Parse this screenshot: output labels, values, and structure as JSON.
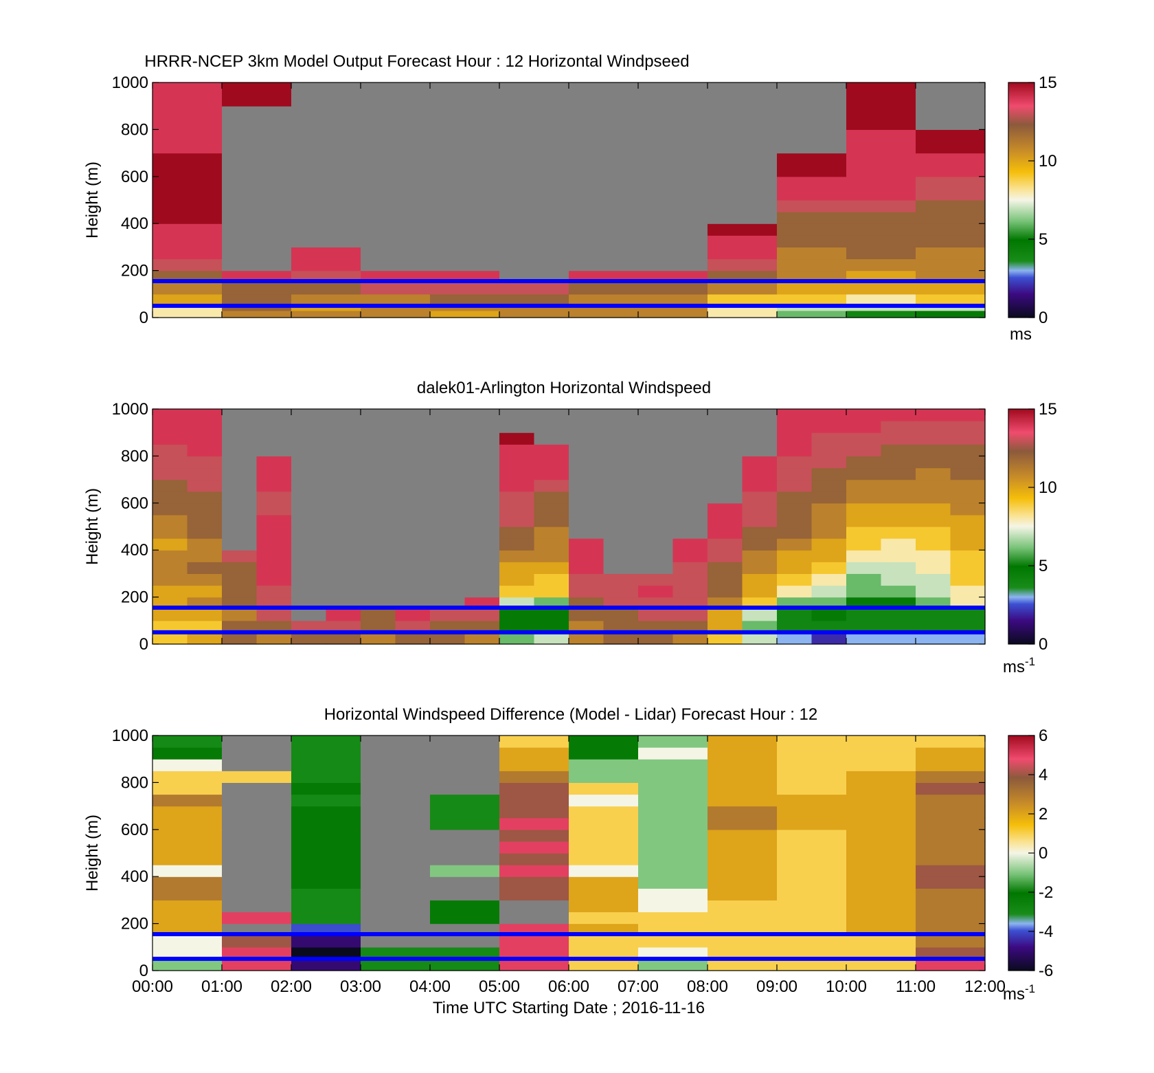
{
  "figure": {
    "xlabel": "Time UTC  Starting Date ; 2016-11-16",
    "x_ticks": [
      "00:00",
      "01:00",
      "02:00",
      "03:00",
      "04:00",
      "05:00",
      "06:00",
      "07:00",
      "08:00",
      "09:00",
      "10:00",
      "11:00",
      "12:00"
    ],
    "y_ticks": [
      "0",
      "200",
      "400",
      "600",
      "800",
      "1000"
    ],
    "ylabel": "Height (m)",
    "missing_color": "#808080",
    "reference_line_color": "#0000ff"
  },
  "chart_data": [
    {
      "type": "heatmap",
      "title": "HRRR-NCEP 3km Model Output   Forecast Hour : 12 Horizontal Windpseed",
      "xlabel": "",
      "ylabel": "Height (m)",
      "xlim": [
        "00:00",
        "12:00"
      ],
      "ylim": [
        0,
        1000
      ],
      "colorbar": {
        "range": [
          0,
          15
        ],
        "ticks": [
          "15",
          "10",
          "5",
          "0"
        ],
        "unit_base": "ms",
        "unit_exp": ""
      },
      "reference_lines_m": [
        155,
        50
      ],
      "time_bins_h": [
        0,
        1,
        2,
        3,
        4,
        5,
        6,
        7,
        8,
        9,
        10,
        11,
        12
      ],
      "height_bins_m": [
        0,
        30,
        60,
        100,
        150,
        200,
        250,
        300,
        350,
        400,
        450,
        500,
        600,
        700,
        800,
        900,
        1000
      ],
      "values": [
        [
          8,
          11,
          11,
          11,
          10,
          11,
          11,
          11,
          8,
          6,
          4,
          5
        ],
        [
          8,
          12,
          10,
          11,
          11,
          11,
          11,
          11,
          8,
          7,
          7,
          7
        ],
        [
          10,
          12,
          11,
          11,
          12,
          12,
          11,
          11,
          9,
          9,
          8,
          9
        ],
        [
          11,
          12,
          12,
          13,
          13,
          13,
          12,
          12,
          11,
          10,
          10,
          10
        ],
        [
          12,
          14,
          13,
          14,
          14,
          null,
          14,
          14,
          12,
          11,
          10,
          11
        ],
        [
          13,
          null,
          14,
          null,
          null,
          null,
          null,
          null,
          13,
          11,
          11,
          11
        ],
        [
          14,
          null,
          14,
          null,
          null,
          null,
          null,
          null,
          14,
          11,
          12,
          11
        ],
        [
          14,
          null,
          null,
          null,
          null,
          null,
          null,
          null,
          14,
          12,
          12,
          12
        ],
        [
          14,
          null,
          null,
          null,
          null,
          null,
          null,
          null,
          15,
          12,
          12,
          12
        ],
        [
          15,
          null,
          null,
          null,
          null,
          null,
          null,
          null,
          null,
          12,
          12,
          12
        ],
        [
          15,
          null,
          null,
          null,
          null,
          null,
          null,
          null,
          null,
          13,
          13,
          12
        ],
        [
          15,
          null,
          null,
          null,
          null,
          null,
          null,
          null,
          null,
          14,
          14,
          13
        ],
        [
          15,
          null,
          null,
          null,
          null,
          null,
          null,
          null,
          null,
          15,
          14,
          14
        ],
        [
          14,
          null,
          null,
          null,
          null,
          null,
          null,
          null,
          null,
          null,
          14,
          15
        ],
        [
          14,
          null,
          null,
          null,
          null,
          null,
          null,
          null,
          null,
          null,
          15,
          null
        ],
        [
          14,
          15,
          null,
          null,
          null,
          null,
          null,
          null,
          null,
          null,
          15,
          null
        ]
      ]
    },
    {
      "type": "heatmap",
      "title": "dalek01-Arlington  Horizontal Windspeed",
      "xlabel": "",
      "ylabel": "Height (m)",
      "xlim": [
        "00:00",
        "12:00"
      ],
      "ylim": [
        0,
        1000
      ],
      "colorbar": {
        "range": [
          0,
          15
        ],
        "ticks": [
          "15",
          "10",
          "5",
          "0"
        ],
        "unit_base": "ms",
        "unit_exp": "-1"
      },
      "reference_lines_m": [
        155,
        50
      ],
      "time_bins_h": [
        0,
        0.5,
        1,
        1.5,
        2,
        2.5,
        3,
        3.5,
        4,
        4.5,
        5,
        5.5,
        6,
        6.5,
        7,
        7.5,
        8,
        8.5,
        9,
        9.5,
        10,
        10.5,
        11,
        11.5,
        12
      ],
      "height_bins_m": [
        0,
        50,
        100,
        150,
        200,
        250,
        300,
        350,
        400,
        450,
        500,
        550,
        600,
        650,
        700,
        750,
        800,
        850,
        900,
        950,
        1000
      ],
      "values": [
        [
          9,
          10,
          12,
          11,
          12,
          12,
          11,
          12,
          12,
          11,
          6,
          7,
          11,
          12,
          12,
          11,
          9,
          7,
          3,
          2,
          3,
          3,
          3,
          3
        ],
        [
          9,
          9,
          12,
          12,
          13,
          13,
          12,
          13,
          12,
          12,
          5,
          5,
          11,
          12,
          12,
          12,
          10,
          6,
          4,
          4,
          4,
          4,
          4,
          4
        ],
        [
          10,
          10,
          11,
          13,
          null,
          14,
          12,
          14,
          13,
          13,
          5,
          5,
          12,
          12,
          13,
          13,
          10,
          7,
          4,
          5,
          4,
          4,
          4,
          4
        ],
        [
          10,
          11,
          12,
          13,
          null,
          null,
          null,
          null,
          null,
          14,
          7,
          6,
          12,
          13,
          13,
          13,
          11,
          9,
          6,
          6,
          5,
          5,
          6,
          8
        ],
        [
          10,
          10,
          12,
          13,
          null,
          null,
          null,
          null,
          null,
          null,
          9,
          9,
          13,
          13,
          14,
          13,
          12,
          10,
          8,
          7,
          6,
          6,
          7,
          8
        ],
        [
          11,
          11,
          12,
          14,
          null,
          null,
          null,
          null,
          null,
          null,
          10,
          9,
          13,
          13,
          13,
          13,
          12,
          10,
          9,
          8,
          6,
          7,
          7,
          9
        ],
        [
          11,
          12,
          12,
          14,
          null,
          null,
          null,
          null,
          null,
          null,
          10,
          10,
          14,
          null,
          null,
          13,
          12,
          11,
          10,
          9,
          7,
          7,
          8,
          9
        ],
        [
          11,
          11,
          13,
          14,
          null,
          null,
          null,
          null,
          null,
          null,
          11,
          11,
          14,
          null,
          null,
          14,
          13,
          11,
          10,
          10,
          8,
          8,
          8,
          9
        ],
        [
          10,
          11,
          null,
          14,
          null,
          null,
          null,
          null,
          null,
          null,
          12,
          11,
          14,
          null,
          null,
          14,
          13,
          12,
          11,
          10,
          9,
          8,
          9,
          10
        ],
        [
          11,
          12,
          null,
          14,
          null,
          null,
          null,
          null,
          null,
          null,
          12,
          11,
          null,
          null,
          null,
          null,
          14,
          12,
          12,
          11,
          9,
          9,
          9,
          10
        ],
        [
          11,
          12,
          null,
          14,
          null,
          null,
          null,
          null,
          null,
          null,
          13,
          12,
          null,
          null,
          null,
          null,
          14,
          13,
          12,
          11,
          10,
          10,
          10,
          10
        ],
        [
          12,
          12,
          null,
          13,
          null,
          null,
          null,
          null,
          null,
          null,
          13,
          12,
          null,
          null,
          null,
          null,
          14,
          13,
          12,
          11,
          10,
          10,
          10,
          11
        ],
        [
          12,
          12,
          null,
          13,
          null,
          null,
          null,
          null,
          null,
          null,
          13,
          12,
          null,
          null,
          null,
          null,
          null,
          13,
          12,
          12,
          11,
          11,
          11,
          11
        ],
        [
          12,
          13,
          null,
          14,
          null,
          null,
          null,
          null,
          null,
          null,
          14,
          13,
          null,
          null,
          null,
          null,
          null,
          14,
          13,
          12,
          11,
          11,
          11,
          11
        ],
        [
          13,
          13,
          null,
          14,
          null,
          null,
          null,
          null,
          null,
          null,
          14,
          14,
          null,
          null,
          null,
          null,
          null,
          14,
          13,
          12,
          12,
          12,
          11,
          12
        ],
        [
          13,
          13,
          null,
          14,
          null,
          null,
          null,
          null,
          null,
          null,
          14,
          14,
          null,
          null,
          null,
          null,
          null,
          14,
          13,
          13,
          12,
          12,
          12,
          12
        ],
        [
          13,
          14,
          null,
          null,
          null,
          null,
          null,
          null,
          null,
          null,
          14,
          14,
          null,
          null,
          null,
          null,
          null,
          null,
          14,
          13,
          13,
          12,
          12,
          12
        ],
        [
          14,
          14,
          null,
          null,
          null,
          null,
          null,
          null,
          null,
          null,
          15,
          null,
          null,
          null,
          null,
          null,
          null,
          null,
          14,
          13,
          13,
          13,
          13,
          13
        ],
        [
          14,
          14,
          null,
          null,
          null,
          null,
          null,
          null,
          null,
          null,
          null,
          null,
          null,
          null,
          null,
          null,
          null,
          null,
          14,
          14,
          14,
          13,
          13,
          13
        ],
        [
          14,
          14,
          null,
          null,
          null,
          null,
          null,
          null,
          null,
          null,
          null,
          null,
          null,
          null,
          null,
          null,
          null,
          null,
          14,
          14,
          14,
          14,
          14,
          14
        ]
      ]
    },
    {
      "type": "heatmap",
      "title": "Horizontal Windspeed Difference (Model - Lidar) Forecast Hour : 12",
      "xlabel": "Time UTC  Starting Date ; 2016-11-16",
      "ylabel": "Height (m)",
      "xlim": [
        "00:00",
        "12:00"
      ],
      "ylim": [
        0,
        1000
      ],
      "colorbar": {
        "range": [
          -6,
          6
        ],
        "ticks": [
          "6",
          "4",
          "2",
          "0",
          "-2",
          "-4",
          "-6"
        ],
        "unit_base": "ms",
        "unit_exp": "-1"
      },
      "reference_lines_m": [
        155,
        50
      ],
      "time_bins_h": [
        0,
        1,
        2,
        3,
        4,
        5,
        6,
        7,
        8,
        9,
        10,
        11,
        12
      ],
      "height_bins_m": [
        0,
        50,
        100,
        150,
        200,
        250,
        300,
        350,
        400,
        450,
        500,
        550,
        600,
        650,
        700,
        750,
        800,
        850,
        900,
        950,
        1000
      ],
      "values": [
        [
          -1,
          5,
          -5,
          -3,
          -3,
          5,
          1,
          -1,
          1,
          1,
          1,
          5
        ],
        [
          0,
          5,
          -6,
          -3,
          -3,
          5,
          1,
          0,
          1,
          1,
          1,
          4
        ],
        [
          0,
          4,
          -5,
          null,
          null,
          5,
          1,
          1,
          1,
          1,
          1,
          3
        ],
        [
          2,
          null,
          -4,
          null,
          null,
          5,
          2,
          1,
          1,
          1,
          2,
          3
        ],
        [
          2,
          5,
          -3,
          null,
          -2,
          null,
          1,
          1,
          1,
          1,
          2,
          3
        ],
        [
          2,
          null,
          -3,
          null,
          -2,
          null,
          2,
          0,
          1,
          1,
          2,
          3
        ],
        [
          3,
          null,
          -3,
          null,
          null,
          4,
          2,
          0,
          2,
          1,
          2,
          3
        ],
        [
          3,
          null,
          -2,
          null,
          null,
          4,
          2,
          -1,
          2,
          1,
          2,
          4
        ],
        [
          0,
          null,
          -2,
          null,
          -1,
          5,
          0,
          -1,
          2,
          1,
          2,
          4
        ],
        [
          2,
          null,
          -2,
          null,
          null,
          4,
          1,
          -1,
          2,
          1,
          2,
          3
        ],
        [
          2,
          null,
          -2,
          null,
          null,
          5,
          1,
          -1,
          2,
          1,
          2,
          3
        ],
        [
          2,
          null,
          -2,
          null,
          null,
          4,
          1,
          -1,
          2,
          1,
          2,
          3
        ],
        [
          2,
          null,
          -2,
          null,
          -3,
          5,
          1,
          -1,
          3,
          2,
          2,
          3
        ],
        [
          2,
          null,
          -2,
          null,
          -3,
          4,
          1,
          -1,
          3,
          2,
          2,
          3
        ],
        [
          3,
          null,
          -3,
          null,
          -3,
          4,
          0,
          -1,
          2,
          2,
          2,
          3
        ],
        [
          1,
          null,
          -2,
          null,
          null,
          4,
          1,
          -1,
          2,
          1,
          2,
          4
        ],
        [
          1,
          1,
          -3,
          null,
          null,
          3,
          -1,
          -1,
          2,
          1,
          2,
          3
        ],
        [
          0,
          null,
          -3,
          null,
          null,
          2,
          -1,
          -1,
          2,
          1,
          1,
          2
        ],
        [
          -2,
          null,
          -3,
          null,
          null,
          2,
          -2,
          0,
          2,
          1,
          1,
          2
        ],
        [
          -3,
          null,
          -3,
          null,
          null,
          1,
          -2,
          -1,
          2,
          1,
          1,
          1
        ]
      ]
    }
  ]
}
